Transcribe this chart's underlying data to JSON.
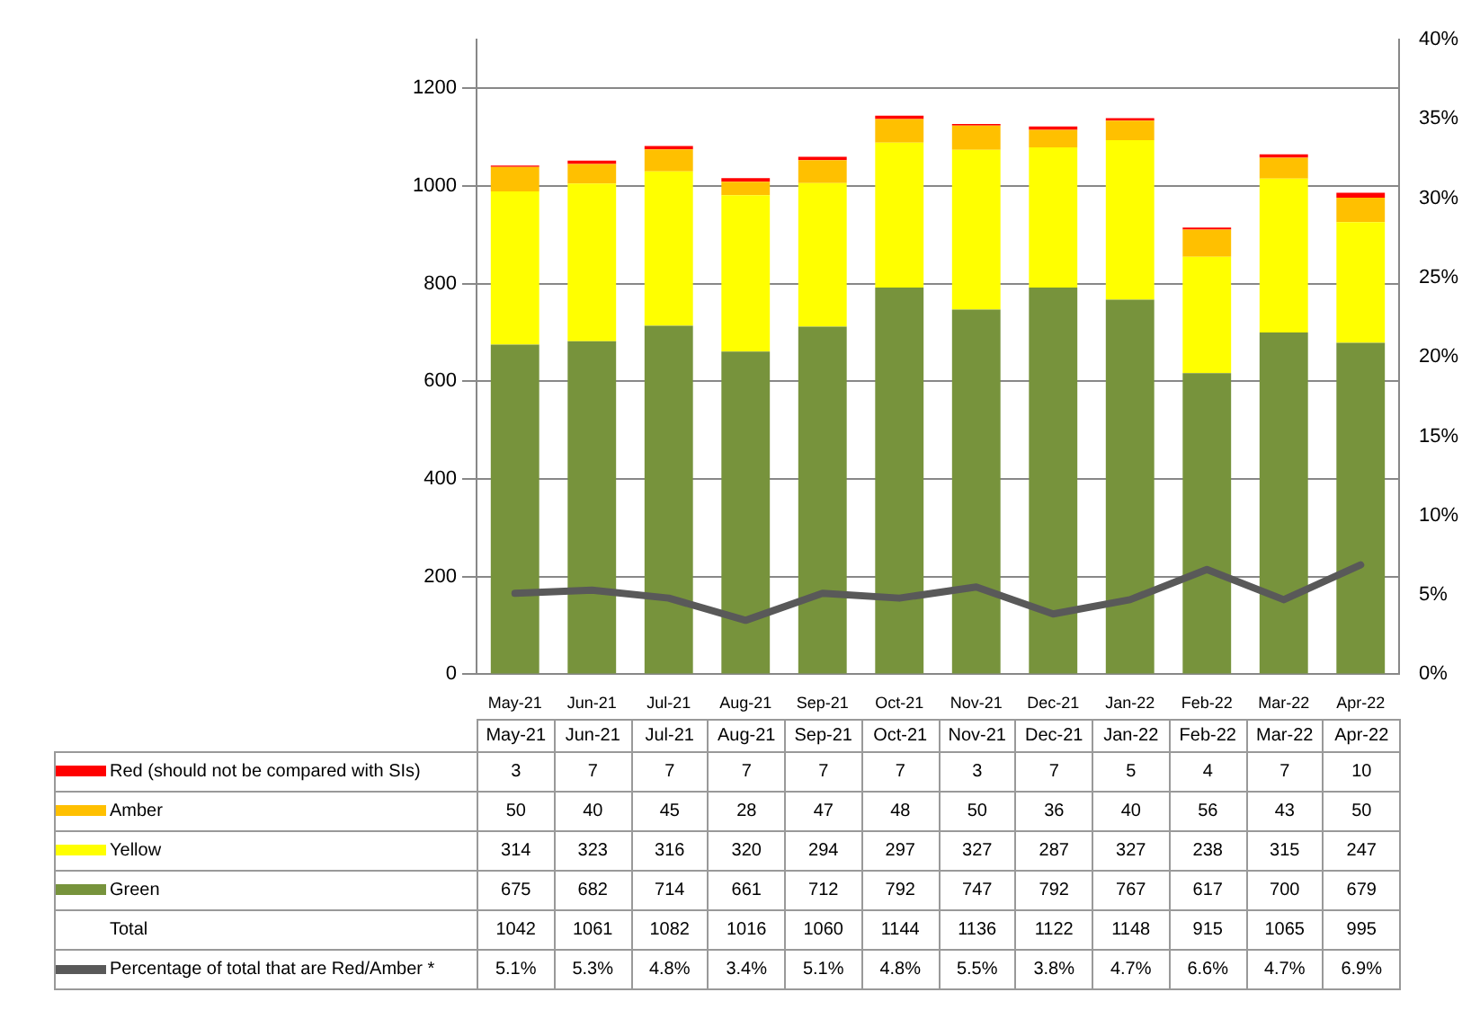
{
  "chart_data": {
    "type": "bar",
    "stacked": true,
    "categories": [
      "May-21",
      "Jun-21",
      "Jul-21",
      "Aug-21",
      "Sep-21",
      "Oct-21",
      "Nov-21",
      "Dec-21",
      "Jan-22",
      "Feb-22",
      "Mar-22",
      "Apr-22"
    ],
    "series": [
      {
        "name": "Green",
        "color": "#77933c",
        "values": [
          675,
          682,
          714,
          661,
          712,
          792,
          747,
          792,
          767,
          617,
          700,
          679
        ]
      },
      {
        "name": "Yellow",
        "color": "#ffff00",
        "values": [
          314,
          323,
          316,
          320,
          294,
          297,
          327,
          287,
          327,
          238,
          315,
          247
        ]
      },
      {
        "name": "Amber",
        "color": "#ffc000",
        "values": [
          50,
          40,
          45,
          28,
          47,
          48,
          50,
          36,
          40,
          56,
          43,
          50
        ]
      },
      {
        "name": "Red (should not be compared with SIs)",
        "color": "#ff0000",
        "values": [
          3,
          7,
          7,
          7,
          7,
          7,
          3,
          7,
          5,
          4,
          7,
          10
        ]
      },
      {
        "name": "Percentage of total that are Red/Amber *",
        "type": "line",
        "axis": "y2",
        "color": "#595959",
        "values": [
          5.1,
          5.3,
          4.8,
          3.4,
          5.1,
          4.8,
          5.5,
          3.8,
          4.7,
          6.6,
          4.7,
          6.9
        ],
        "value_labels": [
          "5.1%",
          "5.3%",
          "4.8%",
          "3.4%",
          "5.1%",
          "4.8%",
          "5.5%",
          "3.8%",
          "4.7%",
          "6.6%",
          "4.7%",
          "6.9%"
        ]
      }
    ],
    "annotations": [
      "Total",
      "1042",
      "1061",
      "1082",
      "1016",
      "1060",
      "1144",
      "1136",
      "1122",
      "1148",
      "915",
      "1065",
      "995"
    ],
    "data_labels": true,
    "ylim": [
      0,
      1300
    ],
    "yticks": [
      0,
      200,
      400,
      600,
      800,
      1000,
      1200
    ],
    "y2lim": [
      0,
      40
    ],
    "y2ticks": [
      {
        "value": 0,
        "label": "0%"
      },
      {
        "value": 5,
        "label": "5%"
      },
      {
        "value": 10,
        "label": "10%"
      },
      {
        "value": 15,
        "label": "15%"
      },
      {
        "value": 20,
        "label": "20%"
      },
      {
        "value": 25,
        "label": "25%"
      },
      {
        "value": 30,
        "label": "30%"
      },
      {
        "value": 35,
        "label": "35%"
      },
      {
        "value": 40,
        "label": "40%"
      }
    ],
    "grid": "y",
    "legend": "bottom",
    "marker": "none",
    "line_style": "solid"
  }
}
